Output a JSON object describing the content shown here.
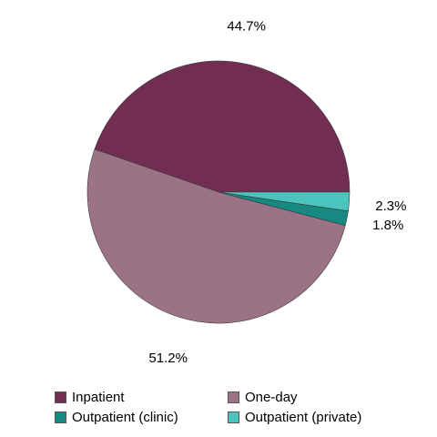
{
  "chart_data": {
    "type": "pie",
    "slices": [
      {
        "name": "Inpatient",
        "value": 44.7,
        "label": "44.7%",
        "color": "#722e52"
      },
      {
        "name": "One-day",
        "value": 51.2,
        "label": "51.2%",
        "color": "#9b7286"
      },
      {
        "name": "Outpatient (clinic)",
        "value": 1.8,
        "label": "1.8%",
        "color": "#168a80"
      },
      {
        "name": "Outpatient (private)",
        "value": 2.3,
        "label": "2.3%",
        "color": "#4cc4be"
      }
    ],
    "legend_position": "bottom",
    "legend": [
      {
        "label": "Inpatient",
        "color": "#722e52"
      },
      {
        "label": "One-day",
        "color": "#9b7286"
      },
      {
        "label": "Outpatient (clinic)",
        "color": "#168a80"
      },
      {
        "label": "Outpatient (private)",
        "color": "#4cc4be"
      }
    ]
  }
}
